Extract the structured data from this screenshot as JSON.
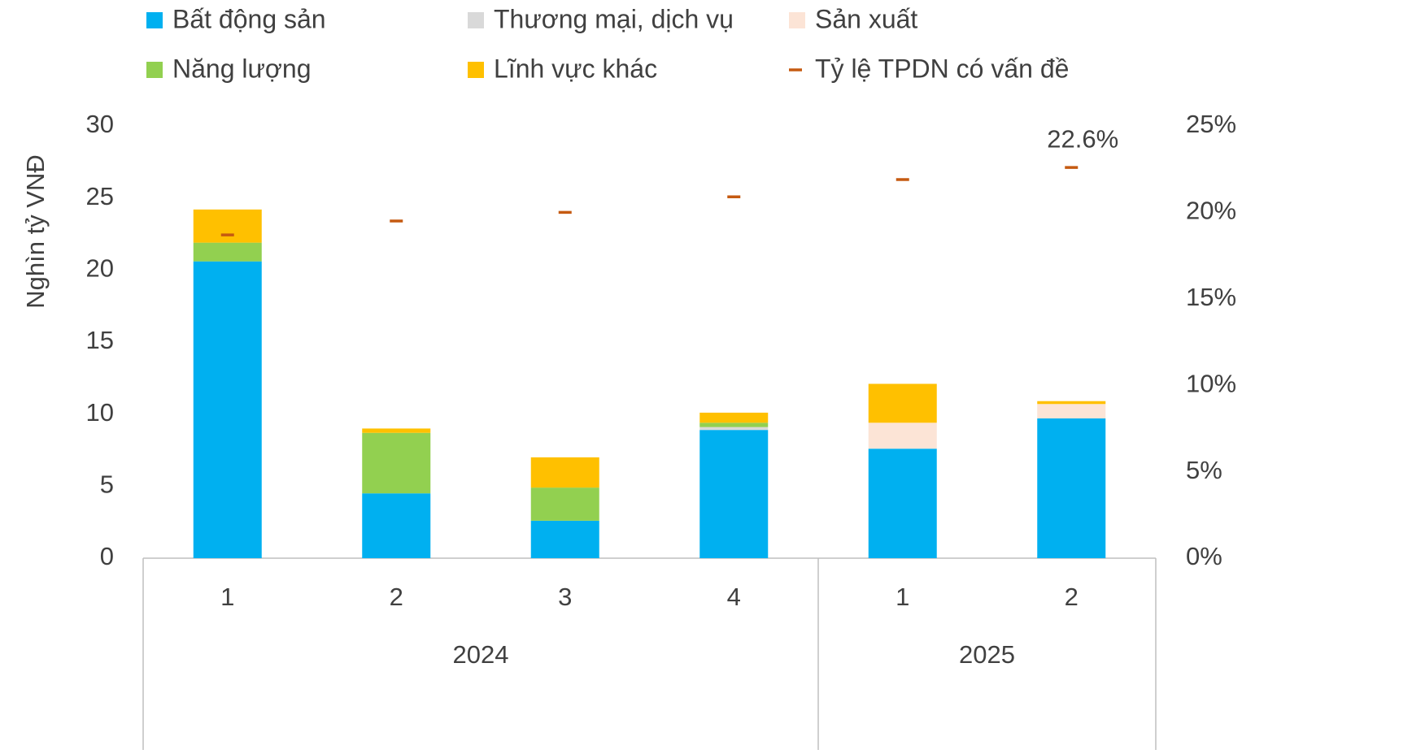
{
  "chart_data": {
    "type": "bar",
    "stacked": true,
    "y_label": "Nghìn tỷ VNĐ",
    "groups": [
      {
        "label": "2024",
        "categories": [
          "1",
          "2",
          "3",
          "4"
        ]
      },
      {
        "label": "2025",
        "categories": [
          "1",
          "2"
        ]
      }
    ],
    "series": [
      {
        "name": "Bất động sản",
        "color": "#00b0f0",
        "values": [
          20.6,
          4.5,
          2.6,
          8.9,
          7.6,
          9.7
        ]
      },
      {
        "name": "Thương mại, dịch vụ",
        "color": "#d9d9d9",
        "values": [
          0,
          0,
          0,
          0.2,
          0,
          0
        ]
      },
      {
        "name": "Sản xuất",
        "color": "#fce4d6",
        "values": [
          0,
          0,
          0,
          0,
          1.8,
          1.0
        ]
      },
      {
        "name": "Năng lượng",
        "color": "#92d050",
        "values": [
          1.3,
          4.2,
          2.3,
          0.3,
          0,
          0
        ]
      },
      {
        "name": "Lĩnh vực khác",
        "color": "#ffc000",
        "values": [
          2.3,
          0.3,
          2.1,
          0.7,
          2.7,
          0.2
        ]
      },
      {
        "name": "Tỷ lệ TPDN có vấn đề",
        "color": "#c55a11",
        "axis": "y2",
        "marker": "dash",
        "values": [
          18.7,
          19.5,
          20.0,
          20.9,
          21.9,
          22.6
        ],
        "value_labels": [
          null,
          null,
          null,
          null,
          null,
          "22.6%"
        ]
      }
    ],
    "ylim": [
      0,
      30
    ],
    "yticks": [
      0,
      5,
      10,
      15,
      20,
      25,
      30
    ],
    "y2lim": [
      0,
      25
    ],
    "y2ticks": [
      {
        "value": 0,
        "label": "0%"
      },
      {
        "value": 5,
        "label": "5%"
      },
      {
        "value": 10,
        "label": "10%"
      },
      {
        "value": 15,
        "label": "15%"
      },
      {
        "value": 20,
        "label": "20%"
      },
      {
        "value": 25,
        "label": "25%"
      }
    ],
    "grid": false
  }
}
